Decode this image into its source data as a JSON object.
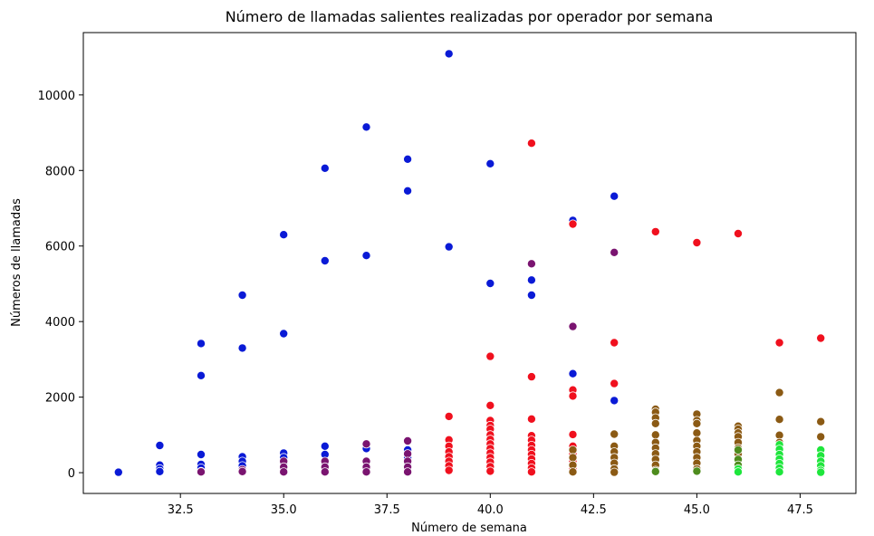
{
  "chart_data": {
    "type": "scatter",
    "title": "Número de llamadas salientes realizadas por operador por semana",
    "xlabel": "Número de semana",
    "ylabel": "Números de llamadas",
    "xlim": [
      30.15,
      48.85
    ],
    "ylim": [
      -550,
      11650
    ],
    "xticks": [
      32.5,
      35.0,
      37.5,
      40.0,
      42.5,
      45.0,
      47.5
    ],
    "xtick_labels": [
      "32.5",
      "35.0",
      "37.5",
      "40.0",
      "42.5",
      "45.0",
      "47.5"
    ],
    "yticks": [
      0,
      2000,
      4000,
      6000,
      8000,
      10000
    ],
    "ytick_labels": [
      "0",
      "2000",
      "4000",
      "6000",
      "8000",
      "10000"
    ],
    "grid": false,
    "legend": false,
    "series": [
      {
        "color": "#0a1ad6",
        "points": [
          [
            31,
            20
          ],
          [
            31,
            10
          ],
          [
            32,
            720
          ],
          [
            32,
            200
          ],
          [
            32,
            100
          ],
          [
            32,
            30
          ],
          [
            33,
            3420
          ],
          [
            33,
            2570
          ],
          [
            33,
            480
          ],
          [
            33,
            220
          ],
          [
            33,
            120
          ],
          [
            33,
            30
          ],
          [
            34,
            4700
          ],
          [
            34,
            3300
          ],
          [
            34,
            420
          ],
          [
            34,
            300
          ],
          [
            34,
            180
          ],
          [
            34,
            60
          ],
          [
            35,
            6300
          ],
          [
            35,
            3680
          ],
          [
            35,
            520
          ],
          [
            35,
            400
          ],
          [
            35,
            250
          ],
          [
            35,
            100
          ],
          [
            36,
            8060
          ],
          [
            36,
            5610
          ],
          [
            36,
            700
          ],
          [
            36,
            480
          ],
          [
            36,
            250
          ],
          [
            37,
            9150
          ],
          [
            37,
            5750
          ],
          [
            37,
            640
          ],
          [
            37,
            300
          ],
          [
            38,
            8300
          ],
          [
            38,
            7460
          ],
          [
            38,
            600
          ],
          [
            38,
            400
          ],
          [
            38,
            200
          ],
          [
            39,
            11090
          ],
          [
            39,
            5980
          ],
          [
            40,
            8180
          ],
          [
            40,
            5010
          ],
          [
            41,
            5100
          ],
          [
            41,
            4700
          ],
          [
            42,
            6680
          ],
          [
            42,
            2620
          ],
          [
            43,
            7320
          ],
          [
            43,
            1910
          ]
        ]
      },
      {
        "color": "#7a1470",
        "points": [
          [
            33,
            20
          ],
          [
            34,
            80
          ],
          [
            34,
            30
          ],
          [
            35,
            300
          ],
          [
            35,
            150
          ],
          [
            35,
            20
          ],
          [
            36,
            300
          ],
          [
            36,
            150
          ],
          [
            36,
            20
          ],
          [
            37,
            760
          ],
          [
            37,
            300
          ],
          [
            37,
            150
          ],
          [
            37,
            20
          ],
          [
            38,
            840
          ],
          [
            38,
            500
          ],
          [
            38,
            300
          ],
          [
            38,
            150
          ],
          [
            38,
            20
          ],
          [
            39,
            120
          ],
          [
            41,
            5530
          ],
          [
            42,
            3870
          ],
          [
            43,
            5830
          ]
        ]
      },
      {
        "color": "#f0101e",
        "points": [
          [
            39,
            1490
          ],
          [
            39,
            870
          ],
          [
            39,
            700
          ],
          [
            39,
            550
          ],
          [
            39,
            420
          ],
          [
            39,
            300
          ],
          [
            39,
            180
          ],
          [
            39,
            60
          ],
          [
            40,
            3080
          ],
          [
            40,
            1780
          ],
          [
            40,
            1380
          ],
          [
            40,
            1250
          ],
          [
            40,
            1150
          ],
          [
            40,
            1000
          ],
          [
            40,
            880
          ],
          [
            40,
            760
          ],
          [
            40,
            640
          ],
          [
            40,
            520
          ],
          [
            40,
            400
          ],
          [
            40,
            280
          ],
          [
            40,
            160
          ],
          [
            40,
            40
          ],
          [
            41,
            8720
          ],
          [
            41,
            2540
          ],
          [
            41,
            1420
          ],
          [
            41,
            980
          ],
          [
            41,
            860
          ],
          [
            41,
            720
          ],
          [
            41,
            600
          ],
          [
            41,
            480
          ],
          [
            41,
            360
          ],
          [
            41,
            240
          ],
          [
            41,
            120
          ],
          [
            41,
            20
          ],
          [
            42,
            6580
          ],
          [
            42,
            2190
          ],
          [
            42,
            2030
          ],
          [
            42,
            1010
          ],
          [
            42,
            700
          ],
          [
            42,
            500
          ],
          [
            42,
            300
          ],
          [
            42,
            100
          ],
          [
            43,
            3440
          ],
          [
            43,
            2360
          ],
          [
            44,
            6380
          ],
          [
            45,
            6090
          ],
          [
            46,
            6330
          ],
          [
            47,
            3440
          ],
          [
            48,
            3560
          ]
        ]
      },
      {
        "color": "#8b5a14",
        "points": [
          [
            42,
            600
          ],
          [
            42,
            400
          ],
          [
            42,
            200
          ],
          [
            42,
            20
          ],
          [
            43,
            1020
          ],
          [
            43,
            700
          ],
          [
            43,
            550
          ],
          [
            43,
            400
          ],
          [
            43,
            250
          ],
          [
            43,
            100
          ],
          [
            43,
            10
          ],
          [
            44,
            1680
          ],
          [
            44,
            1600
          ],
          [
            44,
            1450
          ],
          [
            44,
            1300
          ],
          [
            44,
            1000
          ],
          [
            44,
            800
          ],
          [
            44,
            650
          ],
          [
            44,
            500
          ],
          [
            44,
            350
          ],
          [
            44,
            200
          ],
          [
            44,
            60
          ],
          [
            45,
            1550
          ],
          [
            45,
            1380
          ],
          [
            45,
            1300
          ],
          [
            45,
            1050
          ],
          [
            45,
            850
          ],
          [
            45,
            700
          ],
          [
            45,
            550
          ],
          [
            45,
            400
          ],
          [
            45,
            250
          ],
          [
            45,
            100
          ],
          [
            46,
            1230
          ],
          [
            46,
            1150
          ],
          [
            46,
            1050
          ],
          [
            46,
            950
          ],
          [
            46,
            800
          ],
          [
            46,
            650
          ],
          [
            46,
            500
          ],
          [
            46,
            350
          ],
          [
            46,
            200
          ],
          [
            46,
            50
          ],
          [
            47,
            2120
          ],
          [
            47,
            1410
          ],
          [
            47,
            990
          ],
          [
            47,
            800
          ],
          [
            48,
            1350
          ],
          [
            48,
            950
          ],
          [
            48,
            600
          ]
        ]
      },
      {
        "color": "#4e8c1e",
        "points": [
          [
            44,
            30
          ],
          [
            45,
            40
          ],
          [
            46,
            600
          ],
          [
            46,
            350
          ],
          [
            46,
            200
          ],
          [
            46,
            50
          ]
        ]
      },
      {
        "color": "#1ee63c",
        "points": [
          [
            46,
            100
          ],
          [
            46,
            20
          ],
          [
            47,
            740
          ],
          [
            47,
            620
          ],
          [
            47,
            480
          ],
          [
            47,
            360
          ],
          [
            47,
            240
          ],
          [
            47,
            120
          ],
          [
            47,
            20
          ],
          [
            48,
            600
          ],
          [
            48,
            450
          ],
          [
            48,
            300
          ],
          [
            48,
            180
          ],
          [
            48,
            60
          ],
          [
            48,
            10
          ]
        ]
      }
    ]
  }
}
